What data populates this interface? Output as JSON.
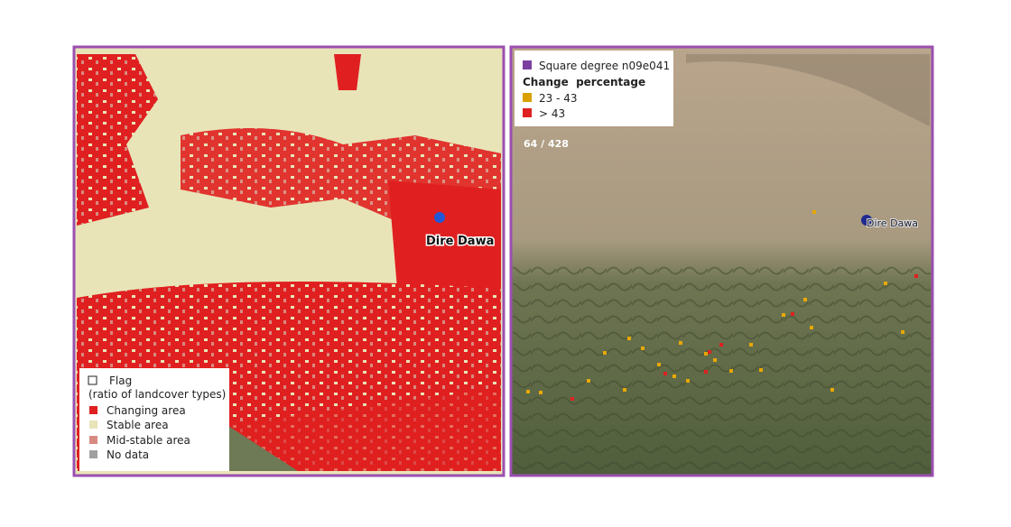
{
  "left_map": {
    "place_label": "Dire Dawa",
    "legend": {
      "title": "Flag",
      "subtitle": "(ratio of landcover types)",
      "items": [
        "Changing area",
        "Stable area",
        "Mid-stable area",
        "No data"
      ]
    }
  },
  "right_map": {
    "place_label": "Dire Dawa",
    "counter": "64 / 428",
    "legend": {
      "layer": "Square degree n09e041",
      "title": "Change  percentage",
      "items": [
        "23 - 43",
        "> 43"
      ]
    }
  }
}
